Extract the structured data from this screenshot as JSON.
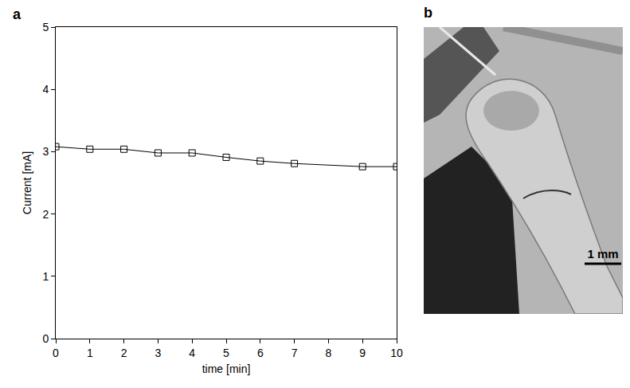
{
  "chart_data": {
    "type": "line",
    "panel_label": "a",
    "x_label": "time [min]",
    "y_label": "Current [mA]",
    "x": [
      0,
      1,
      2,
      3,
      4,
      5,
      6,
      7,
      9,
      10
    ],
    "values": [
      3.08,
      3.04,
      3.04,
      2.98,
      2.98,
      2.91,
      2.85,
      2.81,
      2.76,
      2.76
    ],
    "color": "#000000",
    "marker": "square-open",
    "line_style": "solid",
    "xlim": [
      0,
      10
    ],
    "xticks": [
      0,
      1,
      2,
      3,
      4,
      5,
      6,
      7,
      8,
      9,
      10
    ],
    "ylim": [
      0,
      5
    ],
    "yticks": [
      0,
      1,
      2,
      3,
      4,
      5
    ],
    "grid": false
  },
  "photo": {
    "panel_label": "b",
    "scale_bar": "1 mm"
  }
}
